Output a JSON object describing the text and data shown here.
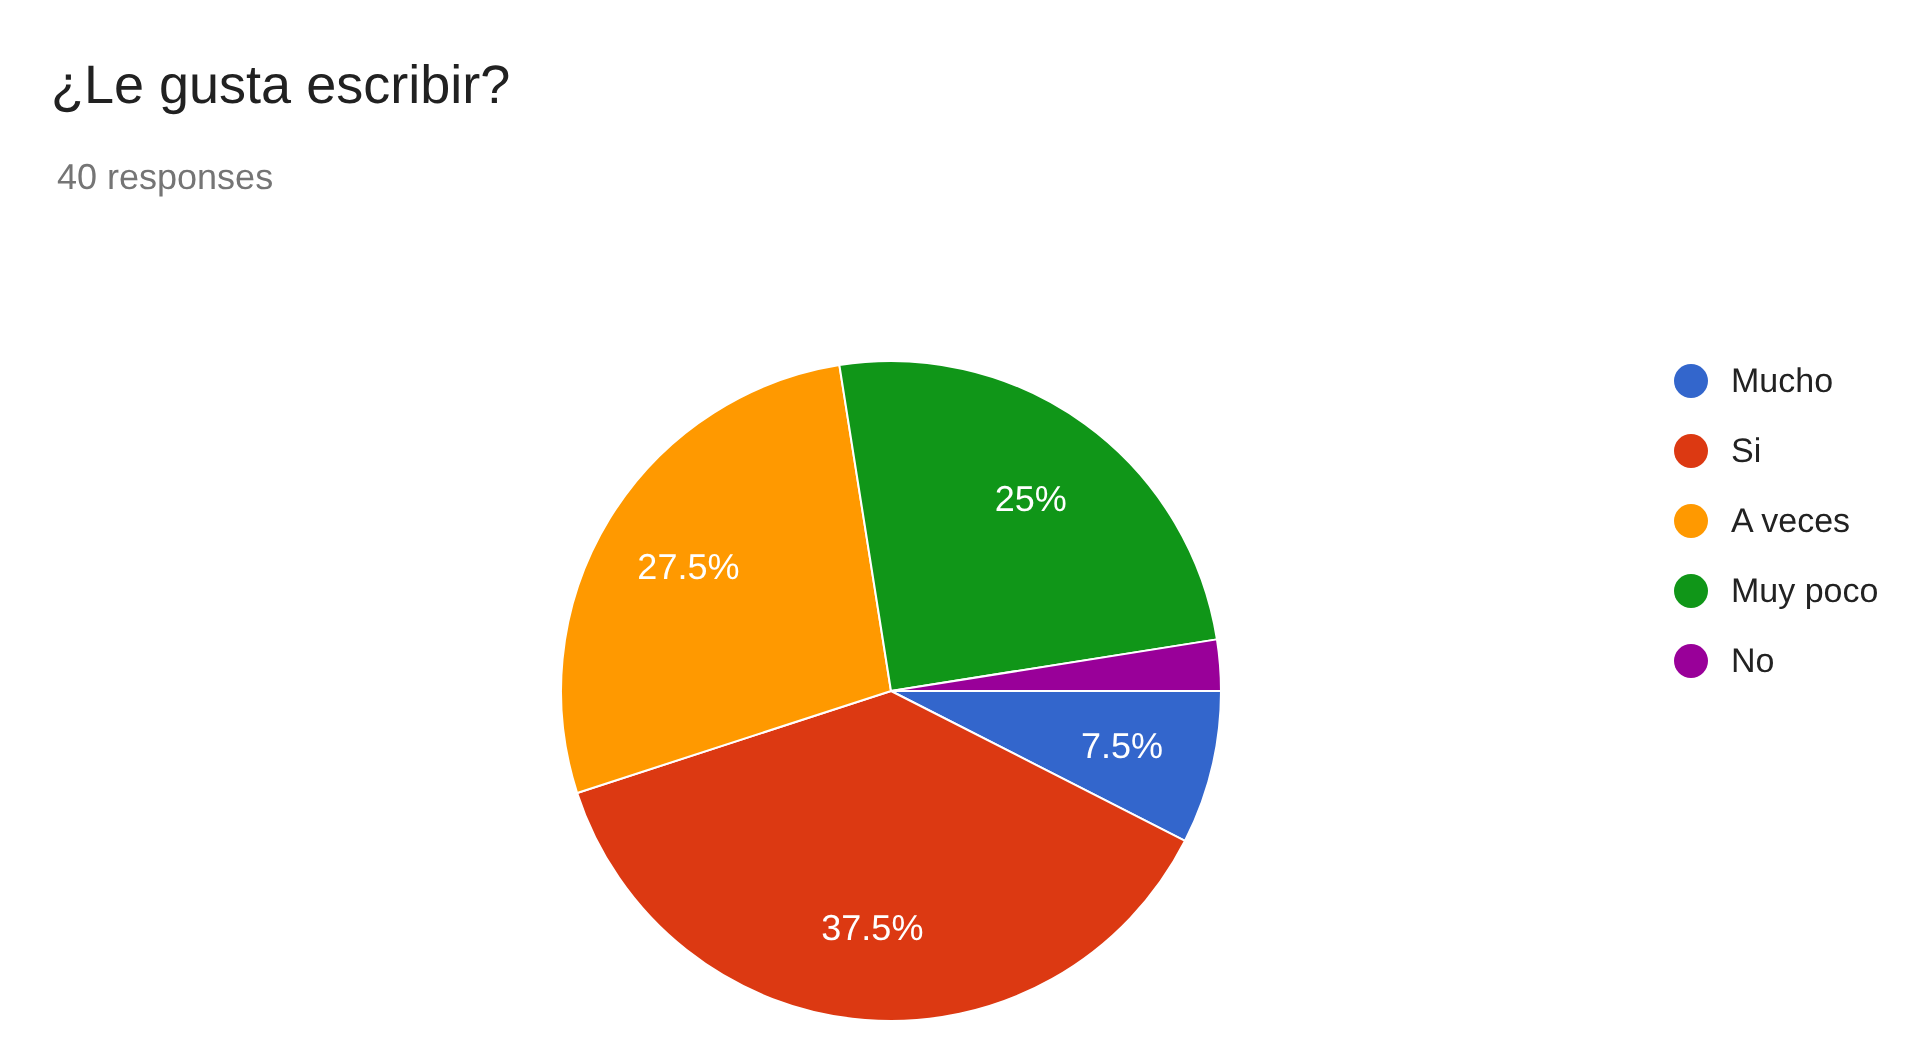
{
  "chart_data": {
    "type": "pie",
    "title": "¿Le gusta escribir?",
    "subtitle": "40 responses",
    "categories": [
      "Mucho",
      "Si",
      "A veces",
      "Muy poco",
      "No"
    ],
    "values": [
      7.5,
      37.5,
      27.5,
      25,
      2.5
    ],
    "colors": [
      "#3366cc",
      "#dc3912",
      "#ff9900",
      "#109618",
      "#990099"
    ],
    "value_labels": [
      "7.5%",
      "37.5%",
      "27.5%",
      "25%",
      null
    ],
    "legend": "right"
  }
}
